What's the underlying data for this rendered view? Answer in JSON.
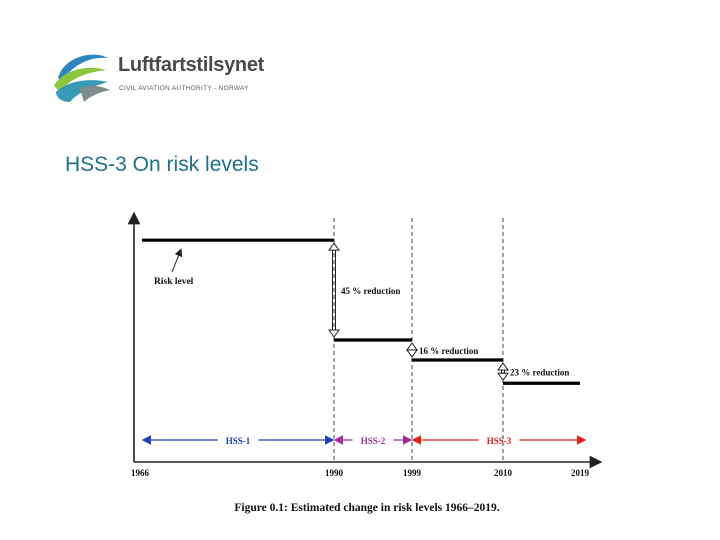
{
  "logo": {
    "name": "Luftfartstilsynet",
    "subtitle": "CIVIL AVIATION AUTHORITY - NORWAY",
    "colors": {
      "blue": "#2e86c1",
      "teal": "#3a9bb5",
      "green": "#8cc63f",
      "gray": "#7f8c8d"
    }
  },
  "slide_title": "HSS-3 On risk levels",
  "chart_data": {
    "type": "line",
    "title": "Figure 0.1: Estimated change in risk levels 1966–2019.",
    "x_ticks": [
      "1966",
      "1990",
      "1999",
      "2010",
      "2019"
    ],
    "x_values": [
      1966,
      1990,
      1999,
      2010,
      2019
    ],
    "xlim": [
      1966,
      2019
    ],
    "series": [
      {
        "name": "Risk level",
        "segments": [
          {
            "x": [
              1966,
              1990
            ],
            "y": 1.0
          },
          {
            "x": [
              1990,
              1999
            ],
            "y": 0.55
          },
          {
            "x": [
              1999,
              2010
            ],
            "y": 0.46
          },
          {
            "x": [
              2010,
              2019
            ],
            "y": 0.355
          }
        ]
      }
    ],
    "ylim": [
      0,
      1.1
    ],
    "vlines": [
      1990,
      1999,
      2010
    ],
    "reductions": [
      {
        "label": "45 % reduction",
        "at": 1990,
        "from": 1.0,
        "to": 0.55
      },
      {
        "label": "16 % reduction",
        "at": 1999,
        "from": 0.55,
        "to": 0.46
      },
      {
        "label": "23 % reduction",
        "at": 2010,
        "from": 0.46,
        "to": 0.355
      }
    ],
    "periods": [
      {
        "label": "HSS-1",
        "from": 1966,
        "to": 1990,
        "color": "#1f3fbf"
      },
      {
        "label": "HSS-2",
        "from": 1990,
        "to": 1999,
        "color": "#9b2d9b"
      },
      {
        "label": "HSS-3",
        "from": 1999,
        "to": 2019,
        "color": "#e0201b"
      }
    ],
    "annotation": "Risk level",
    "grid": false
  }
}
